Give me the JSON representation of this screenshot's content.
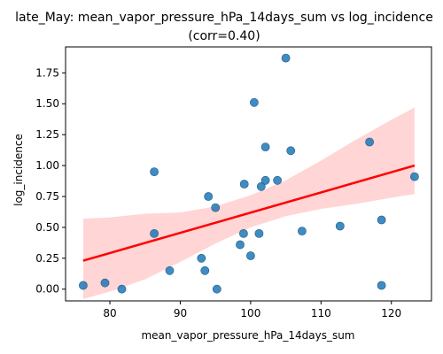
{
  "chart_data": {
    "type": "scatter",
    "title": "late_May: mean_vapor_pressure_hPa_14days_sum vs log_incidence",
    "subtitle": "(corr=0.40)",
    "xlabel": "mean_vapor_pressure_hPa_14days_sum",
    "ylabel": "log_incidence",
    "xlim": [
      73.7,
      125.7
    ],
    "ylim": [
      -0.095,
      1.96
    ],
    "xticks": [
      80,
      90,
      100,
      110,
      120
    ],
    "yticks": [
      0.0,
      0.25,
      0.5,
      0.75,
      1.0,
      1.25,
      1.5,
      1.75
    ],
    "ytick_labels": [
      "0.00",
      "0.25",
      "0.50",
      "0.75",
      "1.00",
      "1.25",
      "1.50",
      "1.75"
    ],
    "grid": false,
    "legend": "none",
    "colors": {
      "points": "#1f77b4",
      "fit_line": "#ff0000",
      "ci_band": "#ffb3b3"
    },
    "points": [
      {
        "x": 76.2,
        "y": 0.03
      },
      {
        "x": 79.3,
        "y": 0.05
      },
      {
        "x": 81.7,
        "y": 0.0
      },
      {
        "x": 86.3,
        "y": 0.95
      },
      {
        "x": 86.3,
        "y": 0.45
      },
      {
        "x": 88.5,
        "y": 0.15
      },
      {
        "x": 93.0,
        "y": 0.25
      },
      {
        "x": 93.5,
        "y": 0.15
      },
      {
        "x": 94.0,
        "y": 0.75
      },
      {
        "x": 95.0,
        "y": 0.66
      },
      {
        "x": 95.2,
        "y": 0.0
      },
      {
        "x": 98.5,
        "y": 0.36
      },
      {
        "x": 99.0,
        "y": 0.45
      },
      {
        "x": 99.1,
        "y": 0.85
      },
      {
        "x": 100.0,
        "y": 0.27
      },
      {
        "x": 100.5,
        "y": 1.51
      },
      {
        "x": 101.2,
        "y": 0.45
      },
      {
        "x": 101.5,
        "y": 0.83
      },
      {
        "x": 102.1,
        "y": 1.15
      },
      {
        "x": 102.1,
        "y": 0.88
      },
      {
        "x": 103.8,
        "y": 0.88
      },
      {
        "x": 105.0,
        "y": 1.87
      },
      {
        "x": 105.7,
        "y": 1.12
      },
      {
        "x": 107.3,
        "y": 0.47
      },
      {
        "x": 112.7,
        "y": 0.51
      },
      {
        "x": 116.9,
        "y": 1.19
      },
      {
        "x": 118.6,
        "y": 0.56
      },
      {
        "x": 118.6,
        "y": 0.03
      },
      {
        "x": 123.3,
        "y": 0.91
      }
    ],
    "fit_line": {
      "x": [
        76.2,
        123.3
      ],
      "y": [
        0.23,
        1.0
      ]
    },
    "confidence_band": {
      "x": [
        76.2,
        80,
        85,
        90,
        95,
        100,
        105,
        110,
        115,
        120,
        123.3
      ],
      "upper": [
        0.57,
        0.58,
        0.61,
        0.62,
        0.67,
        0.76,
        0.88,
        1.04,
        1.21,
        1.37,
        1.47
      ],
      "lower": [
        -0.08,
        -0.02,
        0.08,
        0.22,
        0.37,
        0.5,
        0.59,
        0.65,
        0.69,
        0.74,
        0.77
      ]
    }
  }
}
